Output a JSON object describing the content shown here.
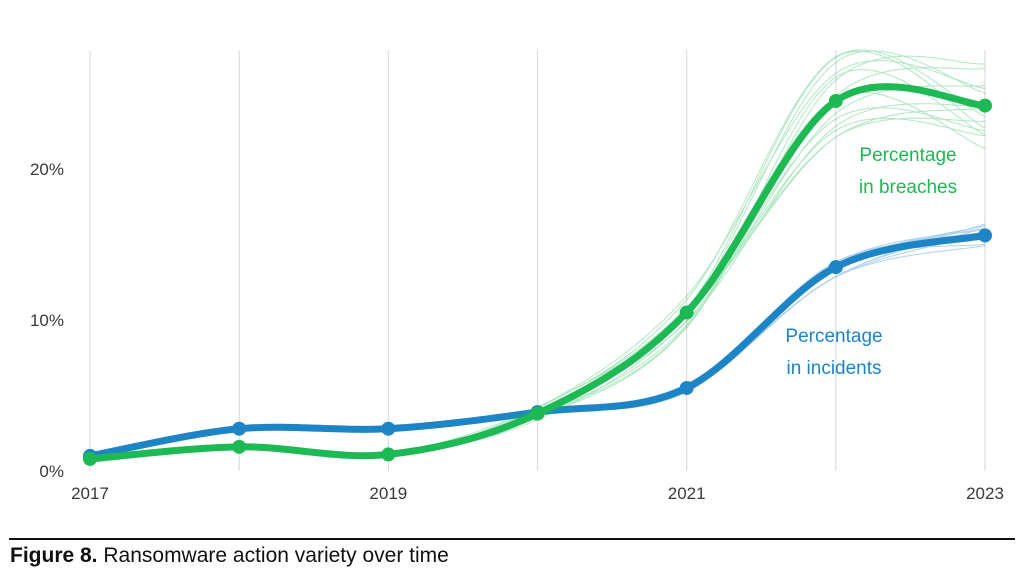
{
  "caption": {
    "label": "Figure 8.",
    "text": " Ransomware action variety over time"
  },
  "chart_data": {
    "type": "line",
    "title": "Ransomware action variety over time",
    "xlabel": "",
    "ylabel": "",
    "x": [
      2017,
      2018,
      2019,
      2020,
      2021,
      2022,
      2023
    ],
    "x_tick_labels": [
      "2017",
      "2019",
      "2021",
      "2023"
    ],
    "x_tick_values": [
      2017,
      2019,
      2021,
      2023
    ],
    "y_tick_labels": [
      "0%",
      "10%",
      "20%"
    ],
    "y_tick_values": [
      0,
      10,
      20
    ],
    "xlim": [
      2017,
      2023
    ],
    "ylim": [
      0,
      27
    ],
    "grid": "vertical",
    "series": [
      {
        "name": "Percentage in breaches",
        "label_lines": [
          "Percentage",
          "in breaches"
        ],
        "color": "#1db954",
        "values": [
          0.8,
          1.6,
          1.1,
          3.8,
          10.5,
          24.5,
          24.2
        ]
      },
      {
        "name": "Percentage in incidents",
        "label_lines": [
          "Percentage",
          "in incidents"
        ],
        "color": "#1d84c6",
        "values": [
          1.0,
          2.8,
          2.8,
          3.9,
          5.5,
          13.5,
          15.6
        ]
      }
    ]
  }
}
